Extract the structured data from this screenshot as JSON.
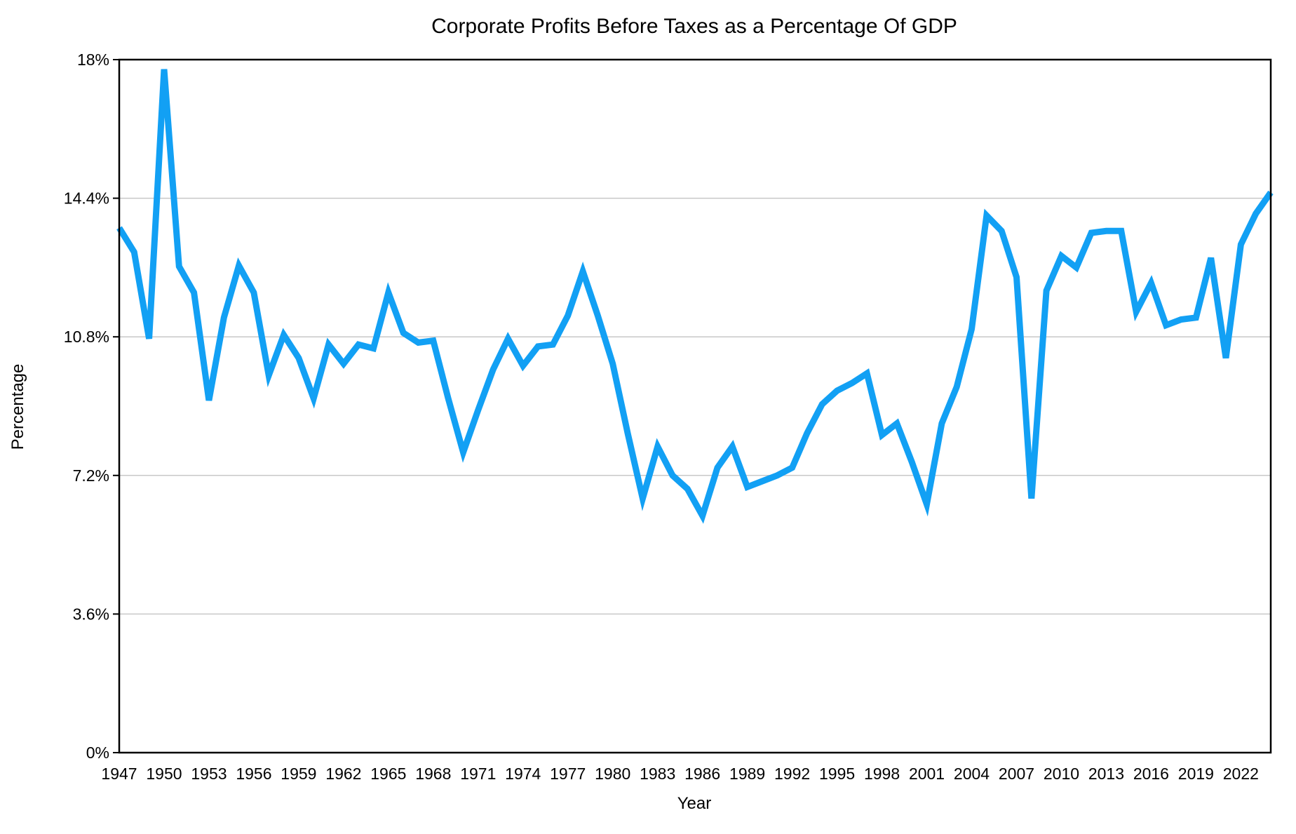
{
  "chart_data": {
    "type": "line",
    "title": "Corporate Profits Before Taxes as a Percentage Of GDP",
    "xlabel": "Year",
    "ylabel": "Percentage",
    "xlim": [
      1947,
      2024
    ],
    "ylim": [
      0,
      18
    ],
    "grid": true,
    "legend": "none",
    "y_ticks": [
      {
        "value": 0,
        "label": "0%"
      },
      {
        "value": 3.6,
        "label": "3.6%"
      },
      {
        "value": 7.2,
        "label": "7.2%"
      },
      {
        "value": 10.8,
        "label": "10.8%"
      },
      {
        "value": 14.4,
        "label": "14.4%"
      },
      {
        "value": 18,
        "label": "18%"
      }
    ],
    "x_ticks": [
      {
        "value": 1947,
        "label": "1947"
      },
      {
        "value": 1950,
        "label": "1950"
      },
      {
        "value": 1953,
        "label": "1953"
      },
      {
        "value": 1956,
        "label": "1956"
      },
      {
        "value": 1959,
        "label": "1959"
      },
      {
        "value": 1962,
        "label": "1962"
      },
      {
        "value": 1965,
        "label": "1965"
      },
      {
        "value": 1968,
        "label": "1968"
      },
      {
        "value": 1971,
        "label": "1971"
      },
      {
        "value": 1974,
        "label": "1974"
      },
      {
        "value": 1977,
        "label": "1977"
      },
      {
        "value": 1980,
        "label": "1980"
      },
      {
        "value": 1983,
        "label": "1983"
      },
      {
        "value": 1986,
        "label": "1986"
      },
      {
        "value": 1989,
        "label": "1989"
      },
      {
        "value": 1992,
        "label": "1992"
      },
      {
        "value": 1995,
        "label": "1995"
      },
      {
        "value": 1998,
        "label": "1998"
      },
      {
        "value": 2001,
        "label": "2001"
      },
      {
        "value": 2004,
        "label": "2004"
      },
      {
        "value": 2007,
        "label": "2007"
      },
      {
        "value": 2010,
        "label": "2010"
      },
      {
        "value": 2013,
        "label": "2013"
      },
      {
        "value": 2016,
        "label": "2016"
      },
      {
        "value": 2019,
        "label": "2019"
      },
      {
        "value": 2022,
        "label": "2022"
      }
    ],
    "line_color": "#12a0f4",
    "series": [
      {
        "name": "Corporate Profits Before Taxes (% of GDP)",
        "x": [
          1947,
          1948,
          1949,
          1950,
          1951,
          1952,
          1953,
          1954,
          1955,
          1956,
          1957,
          1958,
          1959,
          1960,
          1961,
          1962,
          1963,
          1964,
          1965,
          1966,
          1967,
          1968,
          1969,
          1970,
          1971,
          1972,
          1973,
          1974,
          1975,
          1976,
          1977,
          1978,
          1979,
          1980,
          1981,
          1982,
          1983,
          1984,
          1985,
          1986,
          1987,
          1988,
          1989,
          1990,
          1991,
          1992,
          1993,
          1994,
          1995,
          1996,
          1997,
          1998,
          1999,
          2000,
          2001,
          2002,
          2003,
          2004,
          2005,
          2006,
          2007,
          2008,
          2009,
          2010,
          2011,
          2012,
          2013,
          2014,
          2015,
          2016,
          2017,
          2018,
          2019,
          2020,
          2021,
          2022,
          2023,
          2024
        ],
        "y": [
          13.63,
          13.0,
          10.75,
          17.75,
          12.63,
          11.95,
          9.15,
          11.3,
          12.65,
          11.95,
          9.8,
          10.85,
          10.25,
          9.2,
          10.6,
          10.1,
          10.6,
          10.5,
          11.95,
          10.9,
          10.65,
          10.7,
          9.2,
          7.8,
          8.9,
          9.95,
          10.75,
          10.05,
          10.55,
          10.6,
          11.35,
          12.5,
          11.35,
          10.1,
          8.3,
          6.6,
          7.95,
          7.2,
          6.85,
          6.15,
          7.4,
          7.95,
          6.9,
          7.05,
          7.2,
          7.4,
          8.3,
          9.05,
          9.4,
          9.6,
          9.85,
          8.25,
          8.55,
          7.55,
          6.45,
          8.55,
          9.5,
          11.0,
          13.95,
          13.55,
          12.35,
          6.6,
          12.0,
          12.9,
          12.6,
          13.5,
          13.55,
          13.55,
          11.45,
          12.2,
          11.1,
          11.25,
          11.3,
          12.85,
          10.25,
          13.2,
          14.0,
          14.55
        ]
      }
    ]
  }
}
